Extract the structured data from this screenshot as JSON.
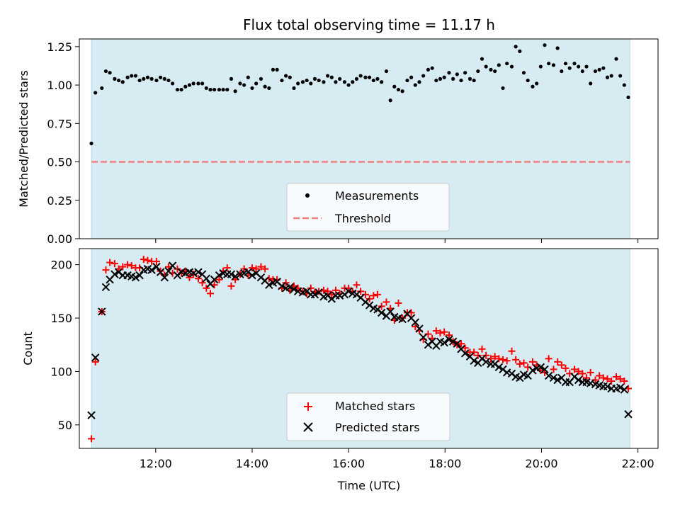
{
  "chart_data": [
    {
      "type": "scatter",
      "title": "Flux total observing time = 11.17 h",
      "xlabel": "",
      "ylabel": "Matched/Predicted stars",
      "xlim": [
        "10:25",
        "22:25"
      ],
      "ylim": [
        0,
        1.3
      ],
      "xticks": [
        "12:00",
        "14:00",
        "16:00",
        "18:00",
        "20:00",
        "22:00"
      ],
      "yticks": [
        "0.00",
        "0.25",
        "0.50",
        "0.75",
        "1.00",
        "1.25"
      ],
      "grid": false,
      "legend": "lower-center",
      "shaded_span": [
        "10:40",
        "21:50"
      ],
      "series": [
        {
          "name": "Measurements",
          "marker": "dot",
          "color": "#000000",
          "x": [
            "10:40",
            "10:45",
            "10:53",
            "10:58",
            "11:03",
            "11:09",
            "11:14",
            "11:19",
            "11:25",
            "11:30",
            "11:35",
            "11:40",
            "11:45",
            "11:50",
            "11:55",
            "12:01",
            "12:06",
            "12:11",
            "12:16",
            "12:21",
            "12:27",
            "12:32",
            "12:37",
            "12:42",
            "12:47",
            "12:53",
            "12:58",
            "13:03",
            "13:08",
            "13:13",
            "13:19",
            "13:24",
            "13:29",
            "13:34",
            "13:39",
            "13:45",
            "13:50",
            "13:55",
            "14:00",
            "14:05",
            "14:11",
            "14:16",
            "14:21",
            "14:26",
            "14:31",
            "14:37",
            "14:42",
            "14:47",
            "14:52",
            "14:57",
            "15:03",
            "15:08",
            "15:13",
            "15:18",
            "15:23",
            "15:29",
            "15:34",
            "15:39",
            "15:44",
            "15:49",
            "15:55",
            "16:00",
            "16:05",
            "16:10",
            "16:15",
            "16:21",
            "16:26",
            "16:31",
            "16:36",
            "16:41",
            "16:47",
            "16:52",
            "16:57",
            "17:02",
            "17:07",
            "17:13",
            "17:18",
            "17:23",
            "17:28",
            "17:33",
            "17:39",
            "17:44",
            "17:49",
            "17:54",
            "17:59",
            "18:05",
            "18:10",
            "18:15",
            "18:20",
            "18:25",
            "18:31",
            "18:36",
            "18:41",
            "18:46",
            "18:51",
            "18:57",
            "19:02",
            "19:07",
            "19:12",
            "19:17",
            "19:23",
            "19:28",
            "19:33",
            "19:38",
            "19:43",
            "19:49",
            "19:54",
            "19:59",
            "20:04",
            "20:09",
            "20:15",
            "20:20",
            "20:25",
            "20:30",
            "20:35",
            "20:41",
            "20:46",
            "20:51",
            "20:56",
            "21:01",
            "21:07",
            "21:12",
            "21:17",
            "21:22",
            "21:27",
            "21:33",
            "21:38",
            "21:43",
            "21:48"
          ],
          "y": [
            0.62,
            0.95,
            0.98,
            1.09,
            1.08,
            1.04,
            1.03,
            1.02,
            1.05,
            1.06,
            1.06,
            1.03,
            1.04,
            1.05,
            1.04,
            1.03,
            1.05,
            1.04,
            1.03,
            1.01,
            0.97,
            0.97,
            0.99,
            1.0,
            1.01,
            1.01,
            1.01,
            0.98,
            0.97,
            0.97,
            0.97,
            0.97,
            0.97,
            1.04,
            0.96,
            1.01,
            1.0,
            1.05,
            0.98,
            1.01,
            1.04,
            0.99,
            0.98,
            1.1,
            1.1,
            1.03,
            1.06,
            1.05,
            0.98,
            1.01,
            1.02,
            1.03,
            1.01,
            1.04,
            1.03,
            1.02,
            1.06,
            1.05,
            1.02,
            1.04,
            1.02,
            1.0,
            1.02,
            1.04,
            1.06,
            1.05,
            1.05,
            1.03,
            1.04,
            1.02,
            1.09,
            0.9,
            0.99,
            0.97,
            0.96,
            1.03,
            1.05,
            1.0,
            1.02,
            1.06,
            1.1,
            1.11,
            1.03,
            1.04,
            1.05,
            1.08,
            1.04,
            1.07,
            1.03,
            1.08,
            1.04,
            1.03,
            1.09,
            1.17,
            1.12,
            1.1,
            1.09,
            1.13,
            0.98,
            1.14,
            1.12,
            1.25,
            1.22,
            1.08,
            1.03,
            0.99,
            1.01,
            1.12,
            1.26,
            1.14,
            1.13,
            1.24,
            1.09,
            1.14,
            1.11,
            1.14,
            1.12,
            1.09,
            1.12,
            1.01,
            1.09,
            1.1,
            1.11,
            1.05,
            1.06,
            1.17,
            1.06,
            1.0,
            0.92
          ]
        },
        {
          "name": "Threshold",
          "marker": "dashed-line",
          "color": "#f07f7f",
          "x": [
            "10:40",
            "21:50"
          ],
          "y": [
            0.5,
            0.5
          ]
        }
      ]
    },
    {
      "type": "scatter",
      "title": "",
      "xlabel": "Time (UTC)",
      "ylabel": "Count",
      "xlim": [
        "10:25",
        "22:25"
      ],
      "ylim": [
        28,
        215
      ],
      "xticks": [
        "12:00",
        "14:00",
        "16:00",
        "18:00",
        "20:00",
        "22:00"
      ],
      "yticks": [
        "50",
        "100",
        "150",
        "200"
      ],
      "grid": false,
      "legend": "lower-center",
      "shaded_span": [
        "10:40",
        "21:50"
      ],
      "series": [
        {
          "name": "Matched stars",
          "marker": "plus",
          "color": "#ff0000",
          "x": [
            "10:40",
            "10:45",
            "10:53",
            "10:58",
            "11:03",
            "11:09",
            "11:14",
            "11:19",
            "11:25",
            "11:30",
            "11:35",
            "11:40",
            "11:45",
            "11:50",
            "11:55",
            "12:01",
            "12:06",
            "12:11",
            "12:16",
            "12:21",
            "12:27",
            "12:32",
            "12:37",
            "12:42",
            "12:47",
            "12:53",
            "12:58",
            "13:03",
            "13:08",
            "13:13",
            "13:19",
            "13:24",
            "13:29",
            "13:34",
            "13:39",
            "13:45",
            "13:50",
            "13:55",
            "14:00",
            "14:05",
            "14:11",
            "14:16",
            "14:21",
            "14:26",
            "14:31",
            "14:37",
            "14:42",
            "14:47",
            "14:52",
            "14:57",
            "15:03",
            "15:08",
            "15:13",
            "15:18",
            "15:23",
            "15:29",
            "15:34",
            "15:39",
            "15:44",
            "15:49",
            "15:55",
            "16:00",
            "16:05",
            "16:10",
            "16:15",
            "16:21",
            "16:26",
            "16:31",
            "16:36",
            "16:41",
            "16:47",
            "16:52",
            "16:57",
            "17:02",
            "17:07",
            "17:13",
            "17:18",
            "17:23",
            "17:28",
            "17:33",
            "17:39",
            "17:44",
            "17:49",
            "17:54",
            "17:59",
            "18:05",
            "18:10",
            "18:15",
            "18:20",
            "18:25",
            "18:31",
            "18:36",
            "18:41",
            "18:46",
            "18:51",
            "18:57",
            "19:02",
            "19:07",
            "19:12",
            "19:17",
            "19:23",
            "19:28",
            "19:33",
            "19:38",
            "19:43",
            "19:49",
            "19:54",
            "19:59",
            "20:04",
            "20:09",
            "20:15",
            "20:20",
            "20:25",
            "20:30",
            "20:35",
            "20:41",
            "20:46",
            "20:51",
            "20:56",
            "21:01",
            "21:07",
            "21:12",
            "21:17",
            "21:22",
            "21:27",
            "21:33",
            "21:38",
            "21:43",
            "21:48"
          ],
          "y": [
            37,
            109,
            156,
            195,
            202,
            201,
            196,
            198,
            200,
            199,
            197,
            197,
            205,
            204,
            203,
            203,
            194,
            190,
            198,
            192,
            196,
            192,
            194,
            188,
            191,
            187,
            183,
            178,
            173,
            181,
            186,
            194,
            197,
            180,
            186,
            191,
            196,
            190,
            197,
            196,
            198,
            196,
            187,
            186,
            186,
            178,
            183,
            176,
            180,
            178,
            175,
            173,
            178,
            174,
            175,
            176,
            175,
            172,
            176,
            173,
            178,
            178,
            175,
            181,
            175,
            172,
            168,
            171,
            172,
            161,
            165,
            159,
            148,
            164,
            150,
            155,
            155,
            142,
            138,
            130,
            135,
            131,
            138,
            136,
            137,
            134,
            128,
            125,
            126,
            122,
            118,
            118,
            115,
            121,
            115,
            112,
            114,
            112,
            111,
            110,
            119,
            111,
            107,
            108,
            104,
            109,
            106,
            101,
            99,
            112,
            102,
            109,
            106,
            103,
            98,
            102,
            100,
            98,
            94,
            99,
            92,
            96,
            94,
            93,
            91,
            95,
            93,
            91,
            84
          ]
        },
        {
          "name": "Predicted stars",
          "marker": "x",
          "color": "#000000",
          "x": [
            "10:40",
            "10:45",
            "10:53",
            "10:58",
            "11:03",
            "11:09",
            "11:14",
            "11:19",
            "11:25",
            "11:30",
            "11:35",
            "11:40",
            "11:45",
            "11:50",
            "11:55",
            "12:01",
            "12:06",
            "12:11",
            "12:16",
            "12:21",
            "12:27",
            "12:32",
            "12:37",
            "12:42",
            "12:47",
            "12:53",
            "12:58",
            "13:03",
            "13:08",
            "13:13",
            "13:19",
            "13:24",
            "13:29",
            "13:34",
            "13:39",
            "13:45",
            "13:50",
            "13:55",
            "14:00",
            "14:05",
            "14:11",
            "14:16",
            "14:21",
            "14:26",
            "14:31",
            "14:37",
            "14:42",
            "14:47",
            "14:52",
            "14:57",
            "15:03",
            "15:08",
            "15:13",
            "15:18",
            "15:23",
            "15:29",
            "15:34",
            "15:39",
            "15:44",
            "15:49",
            "15:55",
            "16:00",
            "16:05",
            "16:10",
            "16:15",
            "16:21",
            "16:26",
            "16:31",
            "16:36",
            "16:41",
            "16:47",
            "16:52",
            "16:57",
            "17:02",
            "17:07",
            "17:13",
            "17:18",
            "17:23",
            "17:28",
            "17:33",
            "17:39",
            "17:44",
            "17:49",
            "17:54",
            "17:59",
            "18:05",
            "18:10",
            "18:15",
            "18:20",
            "18:25",
            "18:31",
            "18:36",
            "18:41",
            "18:46",
            "18:51",
            "18:57",
            "19:02",
            "19:07",
            "19:12",
            "19:17",
            "19:23",
            "19:28",
            "19:33",
            "19:38",
            "19:43",
            "19:49",
            "19:54",
            "19:59",
            "20:04",
            "20:09",
            "20:15",
            "20:20",
            "20:25",
            "20:30",
            "20:35",
            "20:41",
            "20:46",
            "20:51",
            "20:56",
            "21:01",
            "21:07",
            "21:12",
            "21:17",
            "21:22",
            "21:27",
            "21:33",
            "21:38",
            "21:43",
            "21:48"
          ],
          "y": [
            59,
            113,
            156,
            179,
            186,
            191,
            193,
            190,
            190,
            189,
            188,
            190,
            195,
            196,
            195,
            198,
            193,
            188,
            194,
            199,
            190,
            193,
            192,
            193,
            192,
            193,
            191,
            187,
            182,
            186,
            190,
            192,
            191,
            191,
            189,
            191,
            192,
            193,
            190,
            192,
            188,
            185,
            181,
            183,
            184,
            180,
            178,
            179,
            177,
            175,
            174,
            175,
            172,
            172,
            174,
            170,
            171,
            168,
            171,
            171,
            172,
            175,
            173,
            172,
            169,
            165,
            162,
            159,
            158,
            155,
            152,
            156,
            151,
            150,
            149,
            154,
            150,
            146,
            140,
            132,
            125,
            128,
            124,
            128,
            127,
            130,
            128,
            126,
            121,
            117,
            114,
            110,
            108,
            112,
            109,
            107,
            107,
            104,
            102,
            99,
            98,
            95,
            94,
            97,
            96,
            101,
            103,
            104,
            102,
            96,
            94,
            92,
            94,
            90,
            90,
            95,
            92,
            90,
            90,
            89,
            88,
            87,
            86,
            86,
            84,
            84,
            85,
            83,
            60
          ]
        }
      ]
    }
  ]
}
